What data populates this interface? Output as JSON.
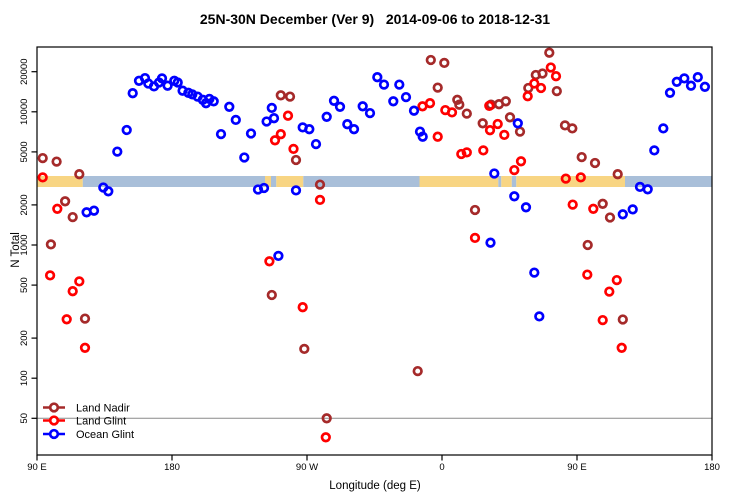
{
  "title": "25N-30N December (Ver 9)   2014-09-06 to 2018-12-31",
  "chart_data": {
    "type": "scatter",
    "title": "25N-30N December (Ver 9)   2014-09-06 to 2018-12-31",
    "xlabel": "Longitude (deg E)",
    "ylabel": "N Total",
    "x_axis": {
      "note": "longitude axis wraps eastward from 90E through 180, 90W, 0 back to 180",
      "range": [
        90,
        540
      ],
      "tick_positions": [
        90,
        180,
        270,
        360,
        450,
        540
      ],
      "tick_labels": [
        "90 E",
        "180",
        "90 W",
        "0",
        "90 E",
        "180"
      ]
    },
    "y_axis": {
      "scale": "log",
      "range": [
        40,
        30000
      ],
      "ticks": [
        50,
        100,
        200,
        500,
        1000,
        2000,
        5000,
        10000,
        20000
      ]
    },
    "reference_line_y": 50,
    "grid": false,
    "legend_position": "bottom-left",
    "map_strip": {
      "description": "land/ocean world-map band drawn across the plot at N ~ 2800-3400",
      "land_color": "#F8D583",
      "ocean_color": "#A9BFD9",
      "segments": [
        {
          "type": "land",
          "from": 90,
          "to": 120.5
        },
        {
          "type": "ocean",
          "from": 120.5,
          "to": 242
        },
        {
          "type": "land",
          "from": 242,
          "to": 246
        },
        {
          "type": "ocean",
          "from": 246,
          "to": 249.5
        },
        {
          "type": "land",
          "from": 249.5,
          "to": 267.5
        },
        {
          "type": "ocean",
          "from": 267.5,
          "to": 345
        },
        {
          "type": "land",
          "from": 345,
          "to": 397.5
        },
        {
          "type": "ocean",
          "from": 397.5,
          "to": 399.5
        },
        {
          "type": "land",
          "from": 399.5,
          "to": 406.5
        },
        {
          "type": "ocean",
          "from": 406.5,
          "to": 409.5
        },
        {
          "type": "land",
          "from": 409.5,
          "to": 482
        },
        {
          "type": "ocean",
          "from": 482,
          "to": 540
        }
      ]
    },
    "series": [
      {
        "name": "Land Nadir",
        "color": "#A52A2A",
        "points": [
          [
            93.8,
            4490
          ],
          [
            103.1,
            4230
          ],
          [
            118.2,
            3400
          ],
          [
            108.7,
            2130
          ],
          [
            113.8,
            1620
          ],
          [
            99.3,
            1010
          ],
          [
            122.0,
            280
          ],
          [
            252.5,
            13300
          ],
          [
            258.7,
            13000
          ],
          [
            262.7,
            4350
          ],
          [
            278.7,
            2840
          ],
          [
            246.5,
            421
          ],
          [
            268.2,
            166
          ],
          [
            283.1,
            50
          ],
          [
            343.8,
            113
          ],
          [
            352.5,
            24500
          ],
          [
            361.5,
            23300
          ],
          [
            357.1,
            15200
          ],
          [
            370.2,
            12300
          ],
          [
            371.5,
            11300
          ],
          [
            376.5,
            9700
          ],
          [
            387.1,
            8200
          ],
          [
            382.0,
            1830
          ],
          [
            392.7,
            11300
          ],
          [
            398.0,
            11400
          ],
          [
            402.5,
            12000
          ],
          [
            405.3,
            9100
          ],
          [
            412.0,
            7100
          ],
          [
            417.5,
            15100
          ],
          [
            422.5,
            18900
          ],
          [
            427.0,
            19400
          ],
          [
            431.5,
            27800
          ],
          [
            436.5,
            14300
          ],
          [
            442.0,
            7900
          ],
          [
            446.9,
            7500
          ],
          [
            453.1,
            4570
          ],
          [
            462.0,
            4130
          ],
          [
            457.1,
            1000
          ],
          [
            467.1,
            2040
          ],
          [
            472.0,
            1610
          ],
          [
            477.1,
            3400
          ],
          [
            480.5,
            276
          ]
        ]
      },
      {
        "name": "Land Glint",
        "color": "#FF0000",
        "points": [
          [
            93.8,
            3220
          ],
          [
            103.5,
            1870
          ],
          [
            98.7,
            591
          ],
          [
            118.2,
            533
          ],
          [
            113.8,
            450
          ],
          [
            109.8,
            277
          ],
          [
            122.0,
            169
          ],
          [
            244.9,
            755
          ],
          [
            248.7,
            6110
          ],
          [
            252.5,
            6790
          ],
          [
            257.3,
            9350
          ],
          [
            261.0,
            5270
          ],
          [
            267.1,
            341
          ],
          [
            278.7,
            2180
          ],
          [
            282.5,
            36
          ],
          [
            347.0,
            11000
          ],
          [
            352.0,
            11600
          ],
          [
            357.1,
            6500
          ],
          [
            362.2,
            10300
          ],
          [
            366.7,
            9900
          ],
          [
            372.9,
            4820
          ],
          [
            376.5,
            4960
          ],
          [
            382.0,
            1130
          ],
          [
            387.5,
            5130
          ],
          [
            391.5,
            11100
          ],
          [
            392.0,
            7270
          ],
          [
            397.1,
            8100
          ],
          [
            401.5,
            6710
          ],
          [
            408.2,
            3650
          ],
          [
            412.7,
            4250
          ],
          [
            417.1,
            13100
          ],
          [
            421.5,
            16300
          ],
          [
            426.0,
            15100
          ],
          [
            432.5,
            21500
          ],
          [
            436.0,
            18500
          ],
          [
            442.5,
            3150
          ],
          [
            447.1,
            2010
          ],
          [
            452.5,
            3220
          ],
          [
            456.9,
            600
          ],
          [
            460.9,
            1870
          ],
          [
            467.1,
            273
          ],
          [
            471.5,
            447
          ],
          [
            476.5,
            545
          ],
          [
            479.8,
            169
          ]
        ]
      },
      {
        "name": "Ocean Glint",
        "color": "#0000FF",
        "points": [
          [
            123.1,
            1760
          ],
          [
            128.0,
            1810
          ],
          [
            134.2,
            2700
          ],
          [
            137.5,
            2530
          ],
          [
            143.5,
            5030
          ],
          [
            149.8,
            7300
          ],
          [
            153.8,
            13800
          ],
          [
            158.0,
            17100
          ],
          [
            162.0,
            17900
          ],
          [
            164.2,
            16300
          ],
          [
            168.0,
            15500
          ],
          [
            171.3,
            16600
          ],
          [
            173.3,
            17800
          ],
          [
            177.1,
            15700
          ],
          [
            181.5,
            17100
          ],
          [
            183.8,
            16600
          ],
          [
            187.1,
            14400
          ],
          [
            190.9,
            13900
          ],
          [
            193.5,
            13500
          ],
          [
            197.1,
            13000
          ],
          [
            200.5,
            12300
          ],
          [
            202.7,
            11600
          ],
          [
            204.9,
            12500
          ],
          [
            207.8,
            12000
          ],
          [
            212.7,
            6800
          ],
          [
            218.2,
            10900
          ],
          [
            222.5,
            8700
          ],
          [
            228.2,
            4540
          ],
          [
            232.7,
            6870
          ],
          [
            237.3,
            2610
          ],
          [
            241.3,
            2680
          ],
          [
            243.1,
            8460
          ],
          [
            246.5,
            10700
          ],
          [
            248.0,
            8950
          ],
          [
            250.9,
            828
          ],
          [
            262.7,
            2570
          ],
          [
            267.1,
            7630
          ],
          [
            271.5,
            7400
          ],
          [
            276.0,
            5720
          ],
          [
            283.1,
            9170
          ],
          [
            288.0,
            12100
          ],
          [
            292.0,
            10900
          ],
          [
            296.9,
            8070
          ],
          [
            301.3,
            7400
          ],
          [
            307.1,
            11000
          ],
          [
            312.0,
            9770
          ],
          [
            316.9,
            18200
          ],
          [
            321.3,
            16000
          ],
          [
            327.5,
            12000
          ],
          [
            331.5,
            16000
          ],
          [
            336.0,
            12900
          ],
          [
            341.3,
            10200
          ],
          [
            345.3,
            7100
          ],
          [
            347.1,
            6500
          ],
          [
            392.3,
            1040
          ],
          [
            394.9,
            3440
          ],
          [
            408.2,
            2320
          ],
          [
            410.5,
            8200
          ],
          [
            416.0,
            1920
          ],
          [
            421.5,
            621
          ],
          [
            424.9,
            291
          ],
          [
            480.5,
            1700
          ],
          [
            487.1,
            1850
          ],
          [
            492.0,
            2730
          ],
          [
            497.1,
            2620
          ],
          [
            501.5,
            5130
          ],
          [
            507.5,
            7500
          ],
          [
            512.0,
            13900
          ],
          [
            516.5,
            16800
          ],
          [
            521.5,
            17800
          ],
          [
            526.0,
            15700
          ],
          [
            530.5,
            18200
          ],
          [
            535.3,
            15400
          ]
        ]
      }
    ]
  }
}
